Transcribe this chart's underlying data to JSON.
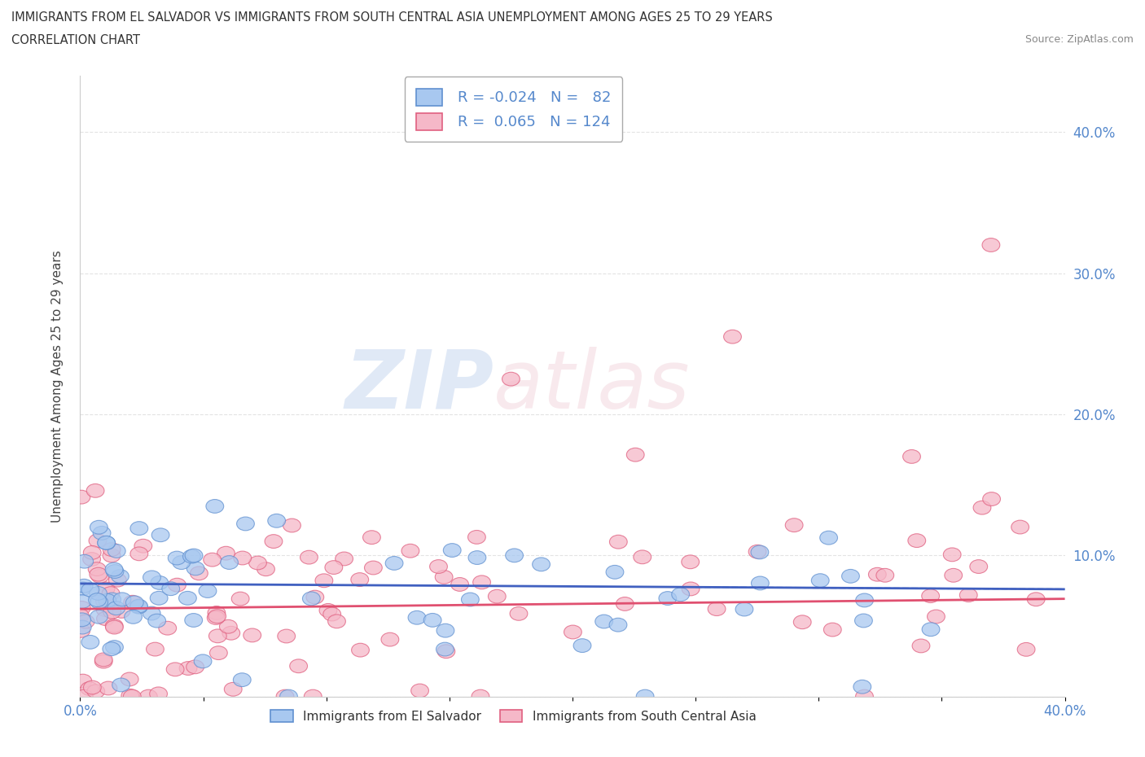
{
  "title_line1": "IMMIGRANTS FROM EL SALVADOR VS IMMIGRANTS FROM SOUTH CENTRAL ASIA UNEMPLOYMENT AMONG AGES 25 TO 29 YEARS",
  "title_line2": "CORRELATION CHART",
  "source_text": "Source: ZipAtlas.com",
  "ylabel": "Unemployment Among Ages 25 to 29 years",
  "xlim": [
    0.0,
    0.4
  ],
  "ylim": [
    0.0,
    0.44
  ],
  "color_blue": "#A8C8F0",
  "color_pink": "#F5B8C8",
  "edge_color_blue": "#6090D0",
  "edge_color_pink": "#E06080",
  "trend_color_blue": "#4060C0",
  "trend_color_pink": "#E05070",
  "R_blue": -0.024,
  "N_blue": 82,
  "R_pink": 0.065,
  "N_pink": 124,
  "legend_label_blue": "Immigrants from El Salvador",
  "legend_label_pink": "Immigrants from South Central Asia",
  "watermark_zip": "ZIP",
  "watermark_atlas": "atlas",
  "background_color": "#ffffff",
  "grid_color": "#dddddd",
  "tick_color": "#5588CC"
}
